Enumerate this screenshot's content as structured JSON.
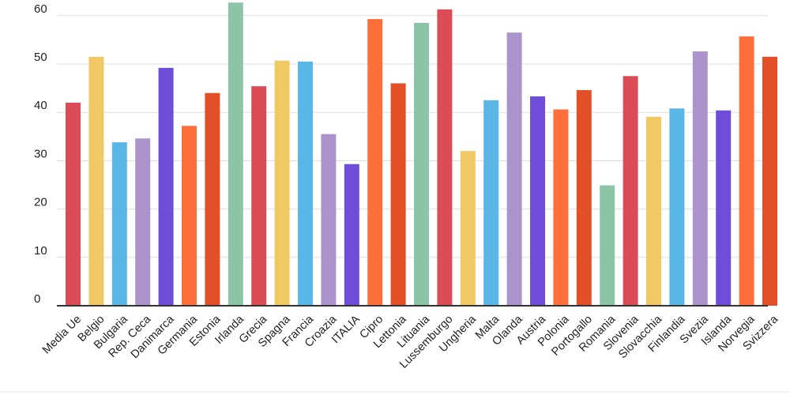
{
  "chart_data": {
    "type": "bar",
    "title": "",
    "xlabel": "",
    "ylabel": "",
    "ylim": [
      0,
      65
    ],
    "yticks": [
      0,
      10,
      20,
      30,
      40,
      50,
      60
    ],
    "grid": true,
    "categories": [
      "Media Ue",
      "Belgio",
      "Bulgaria",
      "Rep. Ceca",
      "Danimarca",
      "Germania",
      "Estonia",
      "Irlanda",
      "Grecia",
      "Spagna",
      "Francia",
      "Croazia",
      "ITALIA",
      "Cipro",
      "Lettonia",
      "Lituania",
      "Lussemburgo",
      "Ungheria",
      "Malta",
      "Olanda",
      "Austria",
      "Polonia",
      "Portogallo",
      "Romania",
      "Slovenia",
      "Slovacchia",
      "Finlandia",
      "Svezia",
      "Islanda",
      "Norvegia",
      "Svizzera"
    ],
    "values": [
      42.0,
      51.5,
      33.8,
      34.6,
      49.2,
      37.2,
      44.0,
      62.7,
      45.4,
      50.7,
      50.5,
      35.5,
      29.3,
      59.3,
      46.0,
      58.5,
      61.3,
      32.0,
      42.5,
      56.5,
      43.3,
      40.6,
      44.6,
      24.9,
      47.5,
      39.1,
      40.8,
      52.6,
      40.4,
      55.7,
      51.5
    ],
    "colors": [
      "#db4c57",
      "#f0c965",
      "#5ab6e6",
      "#ad93cc",
      "#6e4ed8",
      "#ff6f3c",
      "#e34f26",
      "#8cc4a7",
      "#db4c57",
      "#f0c965",
      "#5ab6e6",
      "#ad93cc",
      "#6e4ed8",
      "#ff6f3c",
      "#e34f26",
      "#8cc4a7",
      "#db4c57",
      "#f0c965",
      "#5ab6e6",
      "#ad93cc",
      "#6e4ed8",
      "#ff6f3c",
      "#e34f26",
      "#8cc4a7",
      "#db4c57",
      "#f0c965",
      "#5ab6e6",
      "#ad93cc",
      "#6e4ed8",
      "#ff6f3c",
      "#e34f26"
    ]
  }
}
